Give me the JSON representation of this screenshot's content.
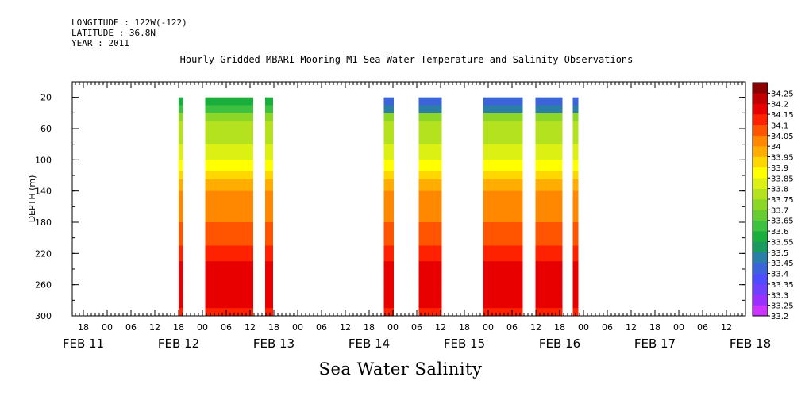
{
  "header": {
    "longitude": "LONGITUDE : 122W(-122)",
    "latitude": "LATITUDE : 36.8N",
    "year": "YEAR : 2011"
  },
  "chart_data": {
    "type": "heatmap",
    "title": "Hourly Gridded MBARI Mooring M1 Sea Water Temperature and Salinity Observations",
    "xlabel": "Sea Water Salinity",
    "ylabel": "DEPTH (m)",
    "x_unit": "hours",
    "xlim": [
      12,
      180
    ],
    "ylim": [
      0,
      300
    ],
    "y_ticks": [
      20,
      60,
      100,
      140,
      180,
      220,
      260,
      300
    ],
    "hour_ticks": [
      {
        "x": 18,
        "label": "18"
      },
      {
        "x": 24,
        "label": "00"
      },
      {
        "x": 30,
        "label": "06"
      },
      {
        "x": 36,
        "label": "12"
      },
      {
        "x": 42,
        "label": "18"
      },
      {
        "x": 48,
        "label": "00"
      },
      {
        "x": 54,
        "label": "06"
      },
      {
        "x": 60,
        "label": "12"
      },
      {
        "x": 66,
        "label": "18"
      },
      {
        "x": 72,
        "label": "00"
      },
      {
        "x": 78,
        "label": "06"
      },
      {
        "x": 84,
        "label": "12"
      },
      {
        "x": 90,
        "label": "18"
      },
      {
        "x": 96,
        "label": "00"
      },
      {
        "x": 102,
        "label": "06"
      },
      {
        "x": 108,
        "label": "12"
      },
      {
        "x": 114,
        "label": "18"
      },
      {
        "x": 120,
        "label": "00"
      },
      {
        "x": 126,
        "label": "06"
      },
      {
        "x": 132,
        "label": "12"
      },
      {
        "x": 138,
        "label": "18"
      },
      {
        "x": 144,
        "label": "00"
      },
      {
        "x": 150,
        "label": "06"
      },
      {
        "x": 156,
        "label": "12"
      },
      {
        "x": 162,
        "label": "18"
      },
      {
        "x": 168,
        "label": "00"
      },
      {
        "x": 174,
        "label": "06"
      },
      {
        "x": 180,
        "label": "12"
      },
      {
        "x": 186,
        "label": "18"
      },
      {
        "x": 192,
        "label": "00"
      },
      {
        "x": 198,
        "label": "06"
      },
      {
        "x": 204,
        "label": "12"
      }
    ],
    "day_labels": [
      {
        "x": 12,
        "label": "FEB 11"
      },
      {
        "x": 36,
        "label": "FEB 12"
      },
      {
        "x": 60,
        "label": "FEB 13"
      },
      {
        "x": 84,
        "label": "FEB 14"
      },
      {
        "x": 108,
        "label": "FEB 15"
      },
      {
        "x": 132,
        "label": "FEB 16"
      },
      {
        "x": 156,
        "label": "FEB 17"
      },
      {
        "x": 180,
        "label": "FEB 18"
      }
    ],
    "levels": [
      33.2,
      33.25,
      33.3,
      33.35,
      33.4,
      33.45,
      33.5,
      33.55,
      33.6,
      33.65,
      33.7,
      33.75,
      33.8,
      33.85,
      33.9,
      33.95,
      34,
      34.05,
      34.1,
      34.15,
      34.2,
      34.25
    ],
    "level_colors": [
      "#cc33ff",
      "#9a30ff",
      "#7040ff",
      "#4d4dff",
      "#3a64d8",
      "#2a7ea8",
      "#1a9a60",
      "#1aae3c",
      "#3ec040",
      "#66cc33",
      "#8cd628",
      "#b4e21e",
      "#dcf014",
      "#ffff00",
      "#ffd700",
      "#ffae00",
      "#ff8800",
      "#ff5500",
      "#ff2200",
      "#e80000",
      "#c00000",
      "#8b0000"
    ],
    "depth_profile": [
      {
        "depth": 20,
        "salinity": 33.6
      },
      {
        "depth": 40,
        "salinity": 33.7
      },
      {
        "depth": 60,
        "salinity": 33.78
      },
      {
        "depth": 80,
        "salinity": 33.8
      },
      {
        "depth": 100,
        "salinity": 33.85
      },
      {
        "depth": 120,
        "salinity": 33.92
      },
      {
        "depth": 140,
        "salinity": 34.0
      },
      {
        "depth": 160,
        "salinity": 34.03
      },
      {
        "depth": 180,
        "salinity": 34.05
      },
      {
        "depth": 200,
        "salinity": 34.08
      },
      {
        "depth": 220,
        "salinity": 34.12
      },
      {
        "depth": 240,
        "salinity": 34.17
      },
      {
        "depth": 260,
        "salinity": 34.2
      },
      {
        "depth": 280,
        "salinity": 34.17
      },
      {
        "depth": 300,
        "salinity": 34.12
      }
    ],
    "segments": [
      {
        "x0": 42,
        "x1": 43.1,
        "surface": 33.55
      },
      {
        "x0": 48.7,
        "x1": 60.8,
        "surface": 33.55
      },
      {
        "x0": 63.8,
        "x1": 65.8,
        "surface": 33.55
      },
      {
        "x0": 93.7,
        "x1": 96.2,
        "surface": 33.4
      },
      {
        "x0": 102.5,
        "x1": 108.3,
        "surface": 33.4
      },
      {
        "x0": 118.7,
        "x1": 128.7,
        "surface": 33.4
      },
      {
        "x0": 131.9,
        "x1": 138.7,
        "surface": 33.4
      },
      {
        "x0": 141.3,
        "x1": 142.7,
        "surface": 33.4
      }
    ]
  }
}
